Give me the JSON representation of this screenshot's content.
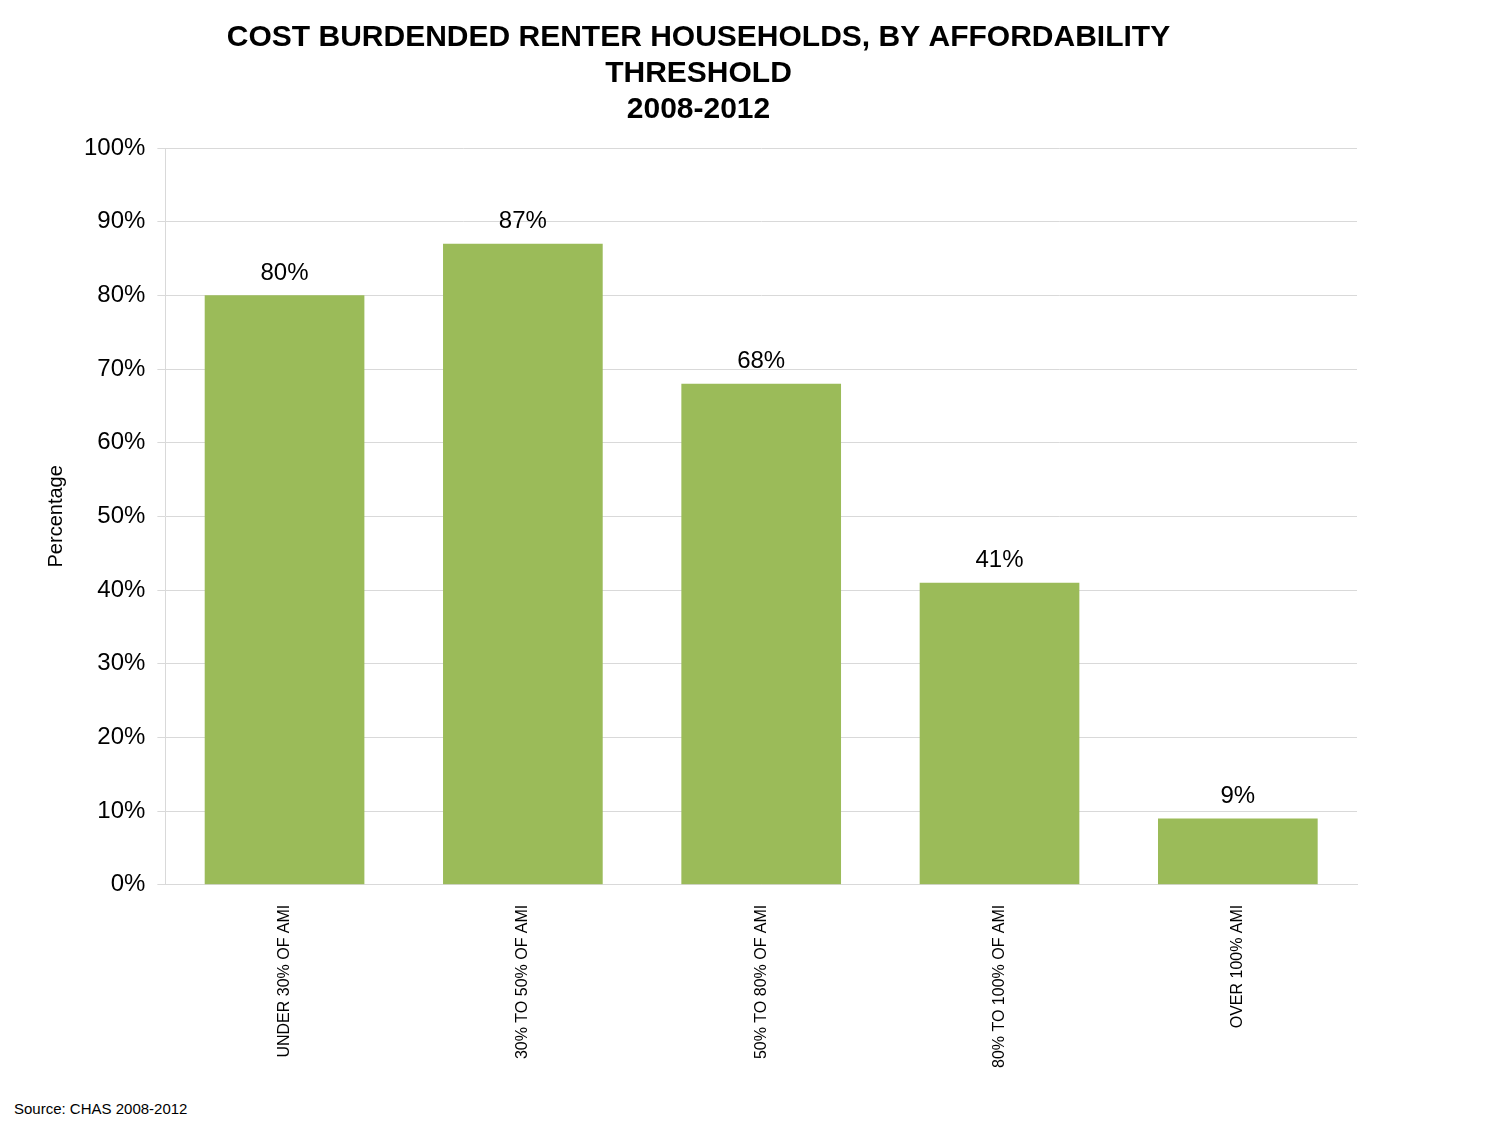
{
  "chart_data": {
    "type": "bar",
    "title": [
      "COST BURDENDED RENTER HOUSEHOLDS, BY AFFORDABILITY",
      "THRESHOLD",
      "2008-2012"
    ],
    "y_label": "Percentage",
    "source": "Source: CHAS 2008-2012",
    "categories": [
      "UNDER 30% OF AMI",
      "30% TO 50% OF AMI",
      "50% TO 80% OF AMI",
      "80% TO 100% OF AMI",
      "OVER 100% AMI"
    ],
    "values": [
      80,
      87,
      68,
      41,
      9
    ],
    "value_labels": [
      "80%",
      "87%",
      "68%",
      "41%",
      "9%"
    ],
    "data_labels": true,
    "color": "#9bbb59",
    "ylim": [
      0,
      100
    ],
    "yticks": [
      {
        "value": 0,
        "label": "0%"
      },
      {
        "value": 10,
        "label": "10%"
      },
      {
        "value": 20,
        "label": "20%"
      },
      {
        "value": 30,
        "label": "30%"
      },
      {
        "value": 40,
        "label": "40%"
      },
      {
        "value": 50,
        "label": "50%"
      },
      {
        "value": 60,
        "label": "60%"
      },
      {
        "value": 70,
        "label": "70%"
      },
      {
        "value": 80,
        "label": "80%"
      },
      {
        "value": 90,
        "label": "90%"
      },
      {
        "value": 100,
        "label": "100%"
      }
    ],
    "grid": true
  }
}
